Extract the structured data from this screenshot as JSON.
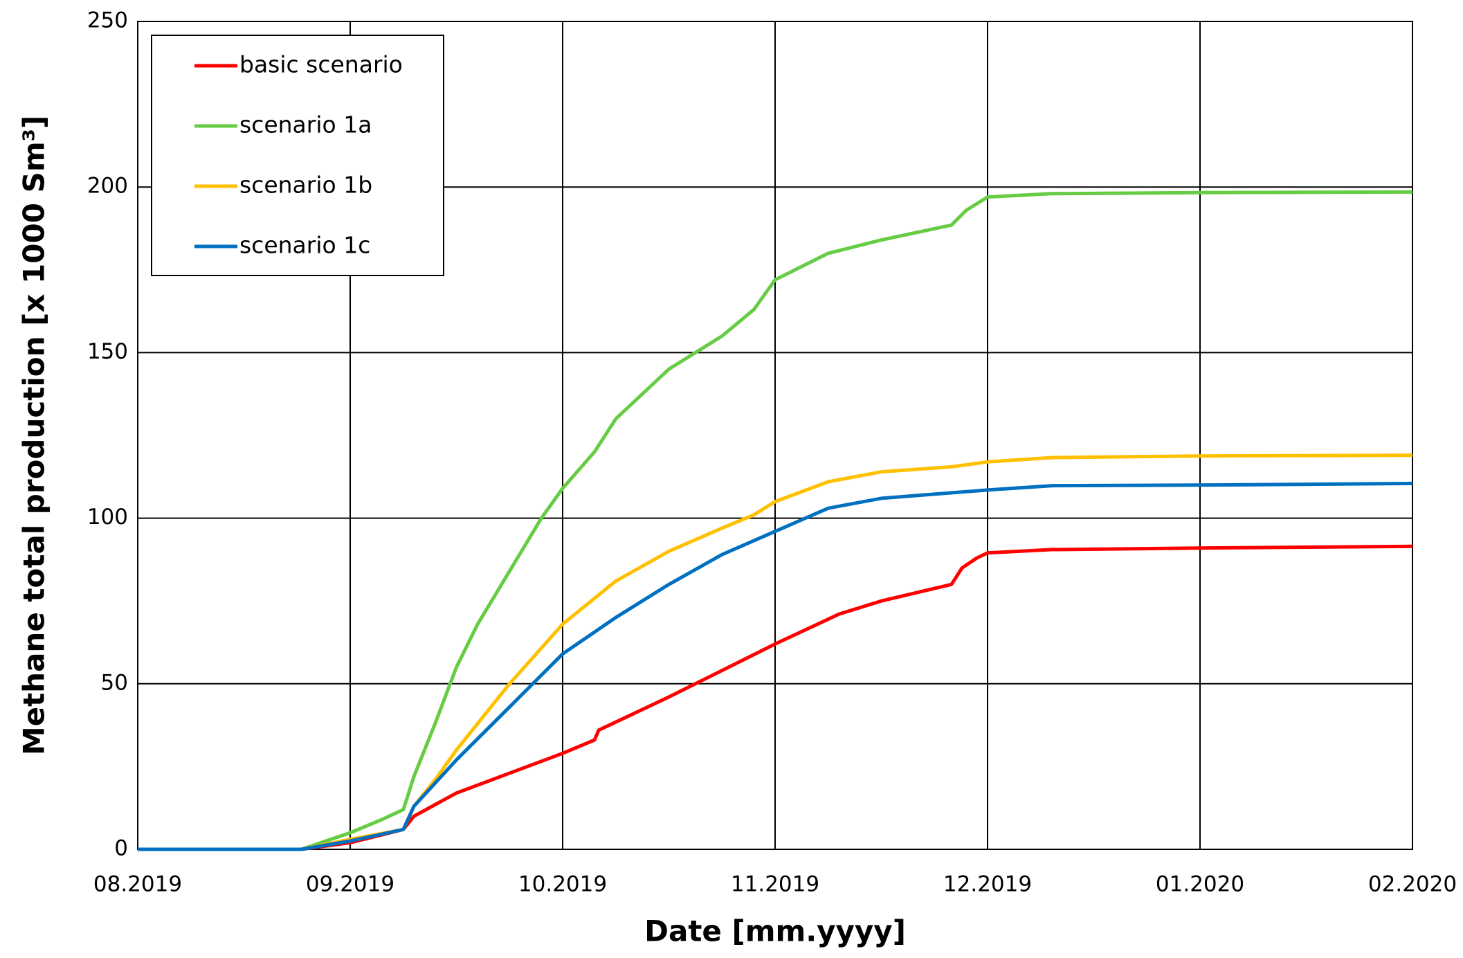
{
  "chart_data": {
    "type": "line",
    "xlabel": "Date [mm.yyyy]",
    "ylabel": "Methane total production [x 1000 Sm³]",
    "xlim": [
      0,
      6
    ],
    "xticks": [
      {
        "value": 0,
        "label": "08.2019"
      },
      {
        "value": 1,
        "label": "09.2019"
      },
      {
        "value": 2,
        "label": "10.2019"
      },
      {
        "value": 3,
        "label": "11.2019"
      },
      {
        "value": 4,
        "label": "12.2019"
      },
      {
        "value": 5,
        "label": "01.2020"
      },
      {
        "value": 6,
        "label": "02.2020"
      }
    ],
    "ylim": [
      0,
      250
    ],
    "yticks": [
      0,
      50,
      100,
      150,
      200,
      250
    ],
    "grid": true,
    "legend": "upper left",
    "series": [
      {
        "name": "basic scenario",
        "color": "#ff0000",
        "x": [
          0,
          0.77,
          1.0,
          1.25,
          1.3,
          1.5,
          2.0,
          2.15,
          2.17,
          2.5,
          3.0,
          3.3,
          3.5,
          3.83,
          3.88,
          3.95,
          4.0,
          4.3,
          5,
          6
        ],
        "values": [
          0,
          0,
          2,
          6,
          10,
          17,
          29,
          33,
          36,
          46,
          62,
          71,
          75,
          80,
          85,
          88,
          89.5,
          90.5,
          91,
          91.5
        ]
      },
      {
        "name": "scenario 1a",
        "color": "#66cc44",
        "x": [
          0,
          0.77,
          1.0,
          1.15,
          1.25,
          1.3,
          1.4,
          1.5,
          1.6,
          1.75,
          1.9,
          2.0,
          2.15,
          2.25,
          2.5,
          2.75,
          2.9,
          3.0,
          3.25,
          3.5,
          3.83,
          3.9,
          4.0,
          4.3,
          5,
          6
        ],
        "values": [
          0,
          0,
          5,
          9,
          12,
          22,
          38,
          55,
          68,
          84,
          100,
          109,
          120,
          130,
          145,
          155,
          163,
          172,
          180,
          184,
          188.5,
          193,
          197,
          198,
          198.3,
          198.5
        ]
      },
      {
        "name": "scenario 1b",
        "color": "#ffc000",
        "x": [
          0,
          0.77,
          1.0,
          1.25,
          1.3,
          1.4,
          1.5,
          1.75,
          2.0,
          2.25,
          2.5,
          2.75,
          2.9,
          3.0,
          3.25,
          3.5,
          3.83,
          4.0,
          4.3,
          5,
          6
        ],
        "values": [
          0,
          0,
          3,
          6,
          13,
          21,
          30,
          50,
          68,
          81,
          90,
          97,
          101,
          105,
          111,
          114,
          115.5,
          117,
          118.3,
          118.8,
          119
        ]
      },
      {
        "name": "scenario 1c",
        "color": "#0070c0",
        "x": [
          0,
          0.77,
          1.0,
          1.25,
          1.3,
          1.4,
          1.5,
          1.75,
          2.0,
          2.25,
          2.5,
          2.75,
          3.0,
          3.25,
          3.5,
          4.0,
          4.3,
          5,
          6
        ],
        "values": [
          0,
          0,
          2.5,
          6,
          13,
          20,
          27,
          43,
          59,
          70,
          80,
          89,
          96,
          103,
          106,
          108.5,
          109.8,
          110,
          110.5
        ]
      }
    ]
  }
}
